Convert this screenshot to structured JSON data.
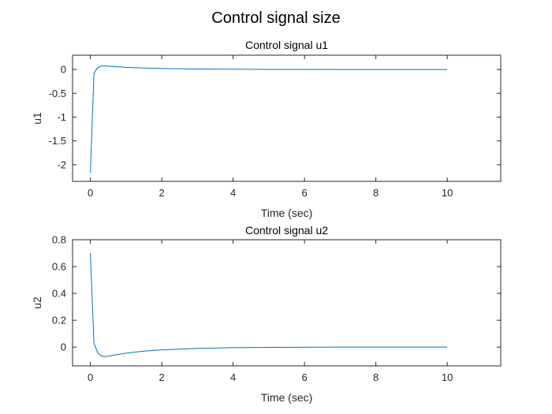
{
  "figure": {
    "title": "Control signal size"
  },
  "colors": {
    "line": "#0072BD",
    "axes": "#262626",
    "background": "#ffffff"
  },
  "chart_data": [
    {
      "type": "line",
      "title": "Control signal u1",
      "xlabel": "Time (sec)",
      "ylabel": "u1",
      "xlim": [
        -0.5,
        11.5
      ],
      "ylim": [
        -2.35,
        0.3
      ],
      "xticks": [
        0,
        2,
        4,
        6,
        8,
        10
      ],
      "yticks": [
        0,
        -0.5,
        -1,
        -1.5,
        -2
      ],
      "xtick_labels": [
        "0",
        "2",
        "4",
        "6",
        "8",
        "10"
      ],
      "ytick_labels": [
        "0",
        "-0.5",
        "-1",
        "-1.5",
        "-2"
      ],
      "grid": false,
      "series": [
        {
          "x": [
            0,
            0.1,
            0.2,
            0.3,
            0.4,
            0.5,
            0.7,
            1.0,
            1.5,
            2.0,
            3.0,
            4.0,
            5.0,
            6.0,
            7.0,
            8.0,
            9.0,
            10.0
          ],
          "y": [
            -2.17,
            -0.08,
            0.04,
            0.07,
            0.075,
            0.07,
            0.06,
            0.045,
            0.03,
            0.02,
            0.01,
            0.005,
            0.002,
            0.001,
            0.0,
            0.0,
            0.0,
            0.0
          ]
        }
      ]
    },
    {
      "type": "line",
      "title": "Control signal u2",
      "xlabel": "Time (sec)",
      "ylabel": "u2",
      "xlim": [
        -0.5,
        11.5
      ],
      "ylim": [
        -0.14,
        0.8
      ],
      "xticks": [
        0,
        2,
        4,
        6,
        8,
        10
      ],
      "yticks": [
        0,
        0.2,
        0.4,
        0.6,
        0.8
      ],
      "xtick_labels": [
        "0",
        "2",
        "4",
        "6",
        "8",
        "10"
      ],
      "ytick_labels": [
        "0",
        "0.2",
        "0.4",
        "0.6",
        "0.8"
      ],
      "grid": false,
      "series": [
        {
          "x": [
            0,
            0.1,
            0.2,
            0.3,
            0.4,
            0.5,
            0.7,
            1.0,
            1.5,
            2.0,
            3.0,
            4.0,
            5.0,
            6.0,
            7.0,
            8.0,
            9.0,
            10.0
          ],
          "y": [
            0.7,
            0.03,
            -0.04,
            -0.065,
            -0.07,
            -0.068,
            -0.058,
            -0.045,
            -0.03,
            -0.02,
            -0.01,
            -0.004,
            -0.002,
            -0.001,
            0.0,
            0.0,
            0.0,
            0.0
          ]
        }
      ]
    }
  ]
}
